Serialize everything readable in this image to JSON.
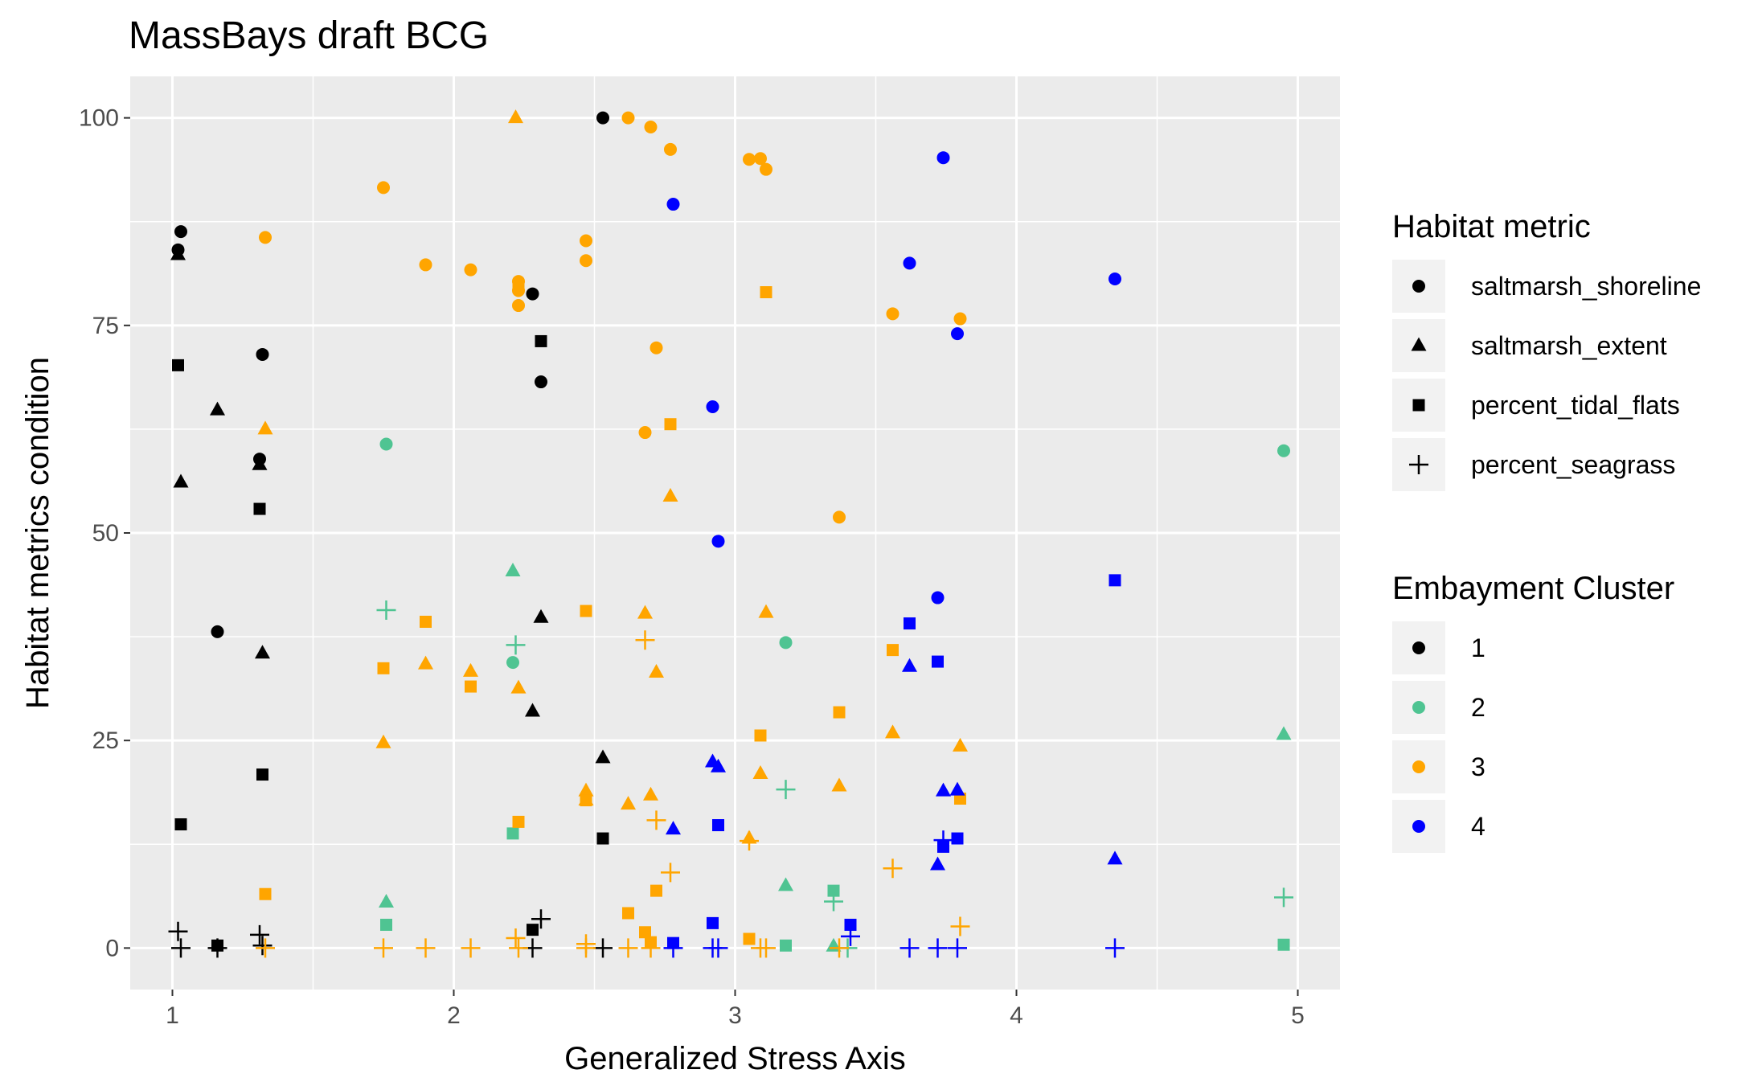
{
  "chart_data": {
    "type": "scatter",
    "title": "MassBays draft BCG",
    "xlabel": "Generalized Stress Axis",
    "ylabel": "Habitat metrics condition",
    "xlim": [
      0.85,
      5.15
    ],
    "ylim": [
      -5,
      105
    ],
    "xticks": [
      1,
      2,
      3,
      4,
      5
    ],
    "yticks": [
      0,
      25,
      50,
      75,
      100
    ],
    "grid": true,
    "legend_position": "right",
    "shape_legend": {
      "title": "Habitat metric",
      "entries": [
        {
          "label": "saltmarsh_shoreline",
          "shape": "circle"
        },
        {
          "label": "saltmarsh_extent",
          "shape": "triangle"
        },
        {
          "label": "percent_tidal_flats",
          "shape": "square"
        },
        {
          "label": "percent_seagrass",
          "shape": "plus"
        }
      ]
    },
    "color_legend": {
      "title": "Embayment Cluster",
      "entries": [
        {
          "label": "1",
          "color": "#000000"
        },
        {
          "label": "2",
          "color": "#4fc492"
        },
        {
          "label": "3",
          "color": "#ffa500"
        },
        {
          "label": "4",
          "color": "#0000ff"
        }
      ]
    },
    "series": [
      {
        "cluster": "1",
        "metric": "saltmarsh_shoreline",
        "points": [
          [
            1.03,
            86.3
          ],
          [
            1.02,
            84.1
          ],
          [
            1.32,
            71.5
          ],
          [
            1.31,
            58.9
          ],
          [
            1.16,
            38.1
          ],
          [
            2.28,
            78.8
          ],
          [
            2.31,
            68.2
          ],
          [
            2.53,
            100
          ]
        ]
      },
      {
        "cluster": "1",
        "metric": "saltmarsh_extent",
        "points": [
          [
            1.02,
            83.5
          ],
          [
            1.16,
            64.8
          ],
          [
            1.03,
            56.1
          ],
          [
            1.31,
            58.2
          ],
          [
            1.32,
            35.5
          ],
          [
            2.31,
            39.8
          ],
          [
            2.28,
            28.5
          ],
          [
            2.53,
            22.9
          ]
        ]
      },
      {
        "cluster": "1",
        "metric": "percent_tidal_flats",
        "points": [
          [
            1.02,
            70.2
          ],
          [
            1.03,
            14.9
          ],
          [
            1.31,
            52.9
          ],
          [
            1.32,
            20.9
          ],
          [
            1.16,
            0.3
          ],
          [
            2.31,
            73.1
          ],
          [
            2.28,
            2.2
          ],
          [
            2.53,
            13.2
          ]
        ]
      },
      {
        "cluster": "1",
        "metric": "percent_seagrass",
        "points": [
          [
            1.02,
            2.0
          ],
          [
            1.03,
            0
          ],
          [
            1.16,
            0
          ],
          [
            1.31,
            1.6
          ],
          [
            1.32,
            0.3
          ],
          [
            2.28,
            0
          ],
          [
            2.31,
            3.5
          ],
          [
            2.53,
            0
          ]
        ]
      },
      {
        "cluster": "2",
        "metric": "saltmarsh_shoreline",
        "points": [
          [
            1.76,
            60.7
          ],
          [
            2.21,
            34.4
          ],
          [
            3.18,
            36.8
          ],
          [
            4.95,
            59.9
          ]
        ]
      },
      {
        "cluster": "2",
        "metric": "saltmarsh_extent",
        "points": [
          [
            1.76,
            5.5
          ],
          [
            2.21,
            45.4
          ],
          [
            3.18,
            7.5
          ],
          [
            3.35,
            0.2
          ],
          [
            4.95,
            25.7
          ]
        ]
      },
      {
        "cluster": "2",
        "metric": "percent_tidal_flats",
        "points": [
          [
            1.76,
            2.8
          ],
          [
            2.21,
            13.8
          ],
          [
            3.18,
            0.3
          ],
          [
            3.35,
            6.9
          ],
          [
            4.95,
            0.4
          ]
        ]
      },
      {
        "cluster": "2",
        "metric": "percent_seagrass",
        "points": [
          [
            1.76,
            40.7
          ],
          [
            2.22,
            36.5
          ],
          [
            3.18,
            19.1
          ],
          [
            3.35,
            5.6
          ],
          [
            3.4,
            0
          ],
          [
            4.95,
            6.1
          ]
        ]
      },
      {
        "cluster": "3",
        "metric": "saltmarsh_shoreline",
        "points": [
          [
            1.33,
            85.6
          ],
          [
            1.75,
            91.6
          ],
          [
            1.9,
            82.3
          ],
          [
            2.06,
            81.7
          ],
          [
            2.23,
            80.3
          ],
          [
            2.23,
            79.2
          ],
          [
            2.23,
            77.4
          ],
          [
            2.47,
            85.2
          ],
          [
            2.47,
            82.8
          ],
          [
            2.62,
            100
          ],
          [
            2.7,
            98.9
          ],
          [
            2.77,
            96.2
          ],
          [
            2.72,
            72.3
          ],
          [
            2.68,
            62.1
          ],
          [
            3.05,
            95.0
          ],
          [
            3.09,
            95.1
          ],
          [
            3.11,
            93.8
          ],
          [
            3.37,
            51.9
          ],
          [
            3.56,
            76.4
          ],
          [
            3.8,
            75.8
          ]
        ]
      },
      {
        "cluster": "3",
        "metric": "saltmarsh_extent",
        "points": [
          [
            2.22,
            100
          ],
          [
            1.33,
            62.5
          ],
          [
            1.75,
            24.7
          ],
          [
            1.9,
            34.2
          ],
          [
            2.06,
            33.3
          ],
          [
            2.23,
            31.3
          ],
          [
            2.47,
            18.9
          ],
          [
            2.47,
            17.8
          ],
          [
            2.62,
            17.3
          ],
          [
            2.68,
            40.3
          ],
          [
            2.7,
            18.4
          ],
          [
            2.72,
            33.2
          ],
          [
            2.77,
            54.4
          ],
          [
            3.05,
            13.2
          ],
          [
            3.09,
            21.0
          ],
          [
            3.11,
            40.4
          ],
          [
            3.37,
            19.5
          ],
          [
            3.56,
            25.9
          ],
          [
            3.8,
            24.3
          ]
        ]
      },
      {
        "cluster": "3",
        "metric": "percent_tidal_flats",
        "points": [
          [
            1.33,
            6.5
          ],
          [
            1.75,
            33.7
          ],
          [
            1.9,
            39.3
          ],
          [
            2.06,
            31.5
          ],
          [
            2.23,
            79.6
          ],
          [
            2.23,
            15.2
          ],
          [
            2.47,
            40.6
          ],
          [
            2.47,
            17.8
          ],
          [
            2.62,
            4.2
          ],
          [
            2.68,
            1.9
          ],
          [
            2.7,
            0.7
          ],
          [
            2.72,
            6.9
          ],
          [
            2.77,
            63.1
          ],
          [
            3.05,
            1.1
          ],
          [
            3.09,
            25.6
          ],
          [
            3.11,
            79.0
          ],
          [
            3.37,
            28.4
          ],
          [
            3.56,
            35.9
          ],
          [
            3.8,
            18.0
          ]
        ]
      },
      {
        "cluster": "3",
        "metric": "percent_seagrass",
        "points": [
          [
            1.33,
            0
          ],
          [
            1.75,
            0
          ],
          [
            1.9,
            0
          ],
          [
            2.06,
            0
          ],
          [
            2.22,
            1.2
          ],
          [
            2.23,
            0
          ],
          [
            2.47,
            0.5
          ],
          [
            2.47,
            0
          ],
          [
            2.62,
            0
          ],
          [
            2.68,
            37.1
          ],
          [
            2.7,
            0
          ],
          [
            2.72,
            15.4
          ],
          [
            2.77,
            9.1
          ],
          [
            3.05,
            12.9
          ],
          [
            3.09,
            0
          ],
          [
            3.11,
            0
          ],
          [
            3.37,
            0
          ],
          [
            3.56,
            9.6
          ],
          [
            3.8,
            2.6
          ]
        ]
      },
      {
        "cluster": "4",
        "metric": "saltmarsh_shoreline",
        "points": [
          [
            2.78,
            89.6
          ],
          [
            2.92,
            65.2
          ],
          [
            2.94,
            49.0
          ],
          [
            3.62,
            82.5
          ],
          [
            3.72,
            42.2
          ],
          [
            3.74,
            95.2
          ],
          [
            3.79,
            74.0
          ],
          [
            4.35,
            80.6
          ]
        ]
      },
      {
        "cluster": "4",
        "metric": "saltmarsh_extent",
        "points": [
          [
            2.78,
            14.3
          ],
          [
            2.92,
            22.4
          ],
          [
            2.94,
            21.8
          ],
          [
            3.62,
            33.9
          ],
          [
            3.72,
            10.0
          ],
          [
            3.74,
            18.9
          ],
          [
            3.79,
            19.0
          ],
          [
            4.35,
            10.7
          ]
        ]
      },
      {
        "cluster": "4",
        "metric": "percent_tidal_flats",
        "points": [
          [
            2.78,
            0.6
          ],
          [
            2.92,
            3.0
          ],
          [
            2.94,
            14.8
          ],
          [
            3.41,
            2.8
          ],
          [
            3.62,
            39.1
          ],
          [
            3.72,
            34.5
          ],
          [
            3.74,
            12.2
          ],
          [
            3.79,
            13.2
          ],
          [
            4.35,
            44.3
          ]
        ]
      },
      {
        "cluster": "4",
        "metric": "percent_seagrass",
        "points": [
          [
            2.78,
            0
          ],
          [
            2.92,
            0
          ],
          [
            2.94,
            0
          ],
          [
            3.41,
            1.4
          ],
          [
            3.62,
            0
          ],
          [
            3.72,
            0
          ],
          [
            3.74,
            13.0
          ],
          [
            3.79,
            0
          ],
          [
            4.35,
            0
          ]
        ]
      }
    ]
  }
}
